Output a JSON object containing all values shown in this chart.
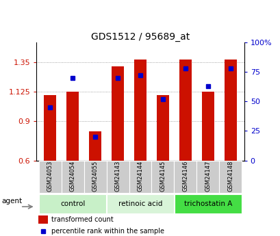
{
  "title": "GDS1512 / 95689_at",
  "samples": [
    "GSM24053",
    "GSM24054",
    "GSM24055",
    "GSM24143",
    "GSM24144",
    "GSM24145",
    "GSM24146",
    "GSM24147",
    "GSM24148"
  ],
  "red_values": [
    1.1,
    1.125,
    0.82,
    1.32,
    1.37,
    1.1,
    1.37,
    1.125,
    1.37
  ],
  "blue_values": [
    45,
    70,
    20,
    70,
    72,
    52,
    78,
    63,
    78
  ],
  "ylim_left": [
    0.6,
    1.5
  ],
  "ylim_right": [
    0,
    100
  ],
  "yticks_left": [
    0.6,
    0.9,
    1.125,
    1.35
  ],
  "yticks_right": [
    0,
    25,
    50,
    75,
    100
  ],
  "ytick_labels_right": [
    "0",
    "25",
    "50",
    "75",
    "100%"
  ],
  "groups": [
    {
      "label": "control",
      "start": 0,
      "end": 3,
      "color": "#c8f0c8"
    },
    {
      "label": "retinoic acid",
      "start": 3,
      "end": 6,
      "color": "#d8f4d8"
    },
    {
      "label": "trichostatin A",
      "start": 6,
      "end": 9,
      "color": "#44dd44"
    }
  ],
  "bar_color": "#cc1100",
  "dot_color": "#0000cc",
  "bar_width": 0.55,
  "grid_color": "#888888",
  "tick_label_color_left": "#cc1100",
  "tick_label_color_right": "#0000cc",
  "legend_red": "transformed count",
  "legend_blue": "percentile rank within the sample",
  "agent_label": "agent",
  "label_row_bg": "#cccccc"
}
